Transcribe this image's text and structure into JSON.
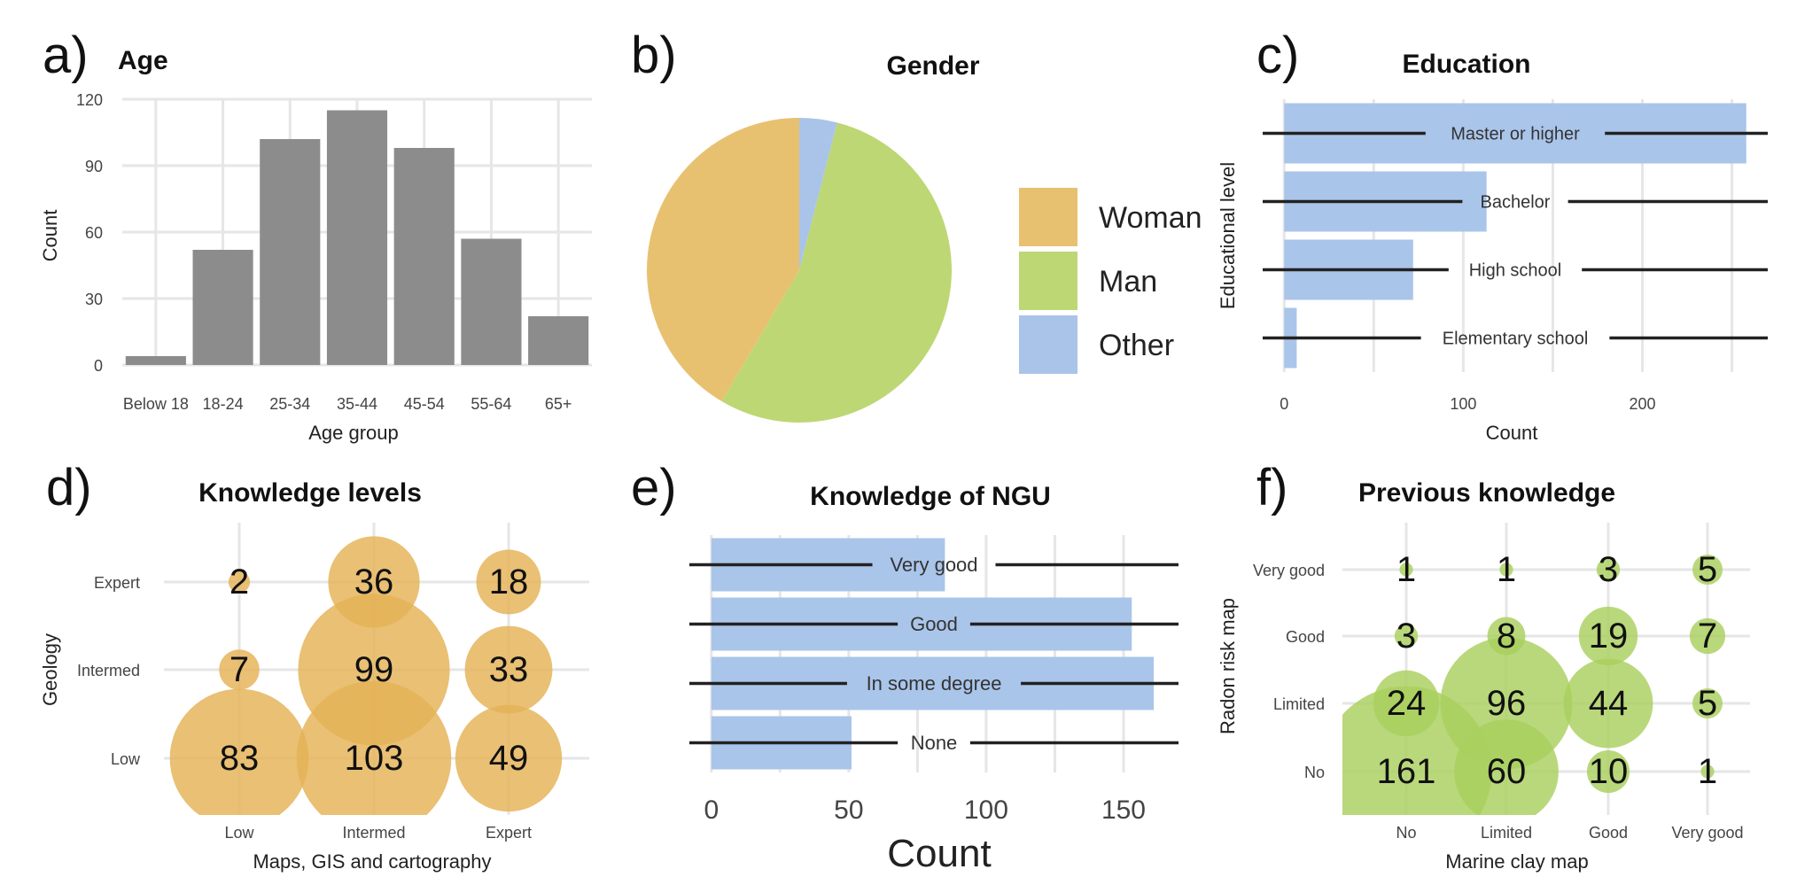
{
  "colors": {
    "age_bar": "#8c8c8c",
    "woman": "#e8c170",
    "man": "#bdd774",
    "other": "#a9c4e8",
    "edu_bar": "#aac5ea",
    "know_bubble": "#e4b255",
    "prev_bubble": "#a9cf5e",
    "line": "#222222"
  },
  "panels": {
    "a": "a)",
    "b": "b)",
    "c": "c)",
    "d": "d)",
    "e": "e)",
    "f": "f)"
  },
  "chart_data": [
    {
      "id": "age",
      "type": "bar",
      "title": "Age",
      "xlabel": "Age group",
      "ylabel": "Count",
      "categories": [
        "Below 18",
        "18-24",
        "25-34",
        "35-44",
        "45-54",
        "55-64",
        "65+"
      ],
      "values": [
        4,
        52,
        102,
        115,
        98,
        57,
        22
      ],
      "ylim": [
        0,
        120
      ],
      "yticks": [
        0,
        30,
        60,
        90,
        120
      ],
      "grid": true
    },
    {
      "id": "gender",
      "type": "pie",
      "title": "Gender",
      "labels": [
        "Woman",
        "Man",
        "Other"
      ],
      "values": [
        41.5,
        54.5,
        4
      ],
      "legend": "right"
    },
    {
      "id": "education",
      "type": "bar",
      "orientation": "horizontal",
      "title": "Education",
      "xlabel": "Count",
      "ylabel": "Educational level",
      "categories": [
        "Master or higher",
        "Bachelor",
        "High school",
        "Elementary school"
      ],
      "values": [
        258,
        113,
        72,
        7
      ],
      "xlim": [
        -12,
        270
      ],
      "xticks": [
        0,
        100,
        200
      ],
      "grid": true
    },
    {
      "id": "knowledge",
      "type": "scatter",
      "title": "Knowledge levels",
      "xlabel": "Maps, GIS and cartography",
      "ylabel": "Geology",
      "xcategories": [
        "Low",
        "Intermed",
        "Expert"
      ],
      "ycategories": [
        "Low",
        "Intermed",
        "Expert"
      ],
      "points": [
        {
          "x": "Low",
          "y": "Expert",
          "value": 2
        },
        {
          "x": "Intermed",
          "y": "Expert",
          "value": 36
        },
        {
          "x": "Expert",
          "y": "Expert",
          "value": 18
        },
        {
          "x": "Low",
          "y": "Intermed",
          "value": 7
        },
        {
          "x": "Intermed",
          "y": "Intermed",
          "value": 99
        },
        {
          "x": "Expert",
          "y": "Intermed",
          "value": 33
        },
        {
          "x": "Low",
          "y": "Low",
          "value": 83
        },
        {
          "x": "Intermed",
          "y": "Low",
          "value": 103
        },
        {
          "x": "Expert",
          "y": "Low",
          "value": 49
        }
      ]
    },
    {
      "id": "ngu",
      "type": "bar",
      "orientation": "horizontal",
      "title": "Knowledge of NGU",
      "xlabel": "Count",
      "categories": [
        "Very good",
        "Good",
        "In some degree",
        "None"
      ],
      "values": [
        85,
        153,
        161,
        51
      ],
      "xlim": [
        -8,
        170
      ],
      "xticks": [
        0,
        50,
        100,
        150
      ],
      "grid": true
    },
    {
      "id": "previous",
      "type": "scatter",
      "title": "Previous knowledge",
      "xlabel": "Marine clay map",
      "ylabel": "Radon risk map",
      "xcategories": [
        "No",
        "Limited",
        "Good",
        "Very good"
      ],
      "ycategories": [
        "No",
        "Limited",
        "Good",
        "Very good"
      ],
      "points": [
        {
          "x": "No",
          "y": "Very good",
          "value": 1
        },
        {
          "x": "Limited",
          "y": "Very good",
          "value": 1
        },
        {
          "x": "Good",
          "y": "Very good",
          "value": 3
        },
        {
          "x": "Very good",
          "y": "Very good",
          "value": 5
        },
        {
          "x": "No",
          "y": "Good",
          "value": 3
        },
        {
          "x": "Limited",
          "y": "Good",
          "value": 8
        },
        {
          "x": "Good",
          "y": "Good",
          "value": 19
        },
        {
          "x": "Very good",
          "y": "Good",
          "value": 7
        },
        {
          "x": "No",
          "y": "Limited",
          "value": 24
        },
        {
          "x": "Limited",
          "y": "Limited",
          "value": 96
        },
        {
          "x": "Good",
          "y": "Limited",
          "value": 44
        },
        {
          "x": "Very good",
          "y": "Limited",
          "value": 5
        },
        {
          "x": "No",
          "y": "No",
          "value": 161
        },
        {
          "x": "Limited",
          "y": "No",
          "value": 60
        },
        {
          "x": "Good",
          "y": "No",
          "value": 10
        },
        {
          "x": "Very good",
          "y": "No",
          "value": 1
        }
      ]
    }
  ]
}
